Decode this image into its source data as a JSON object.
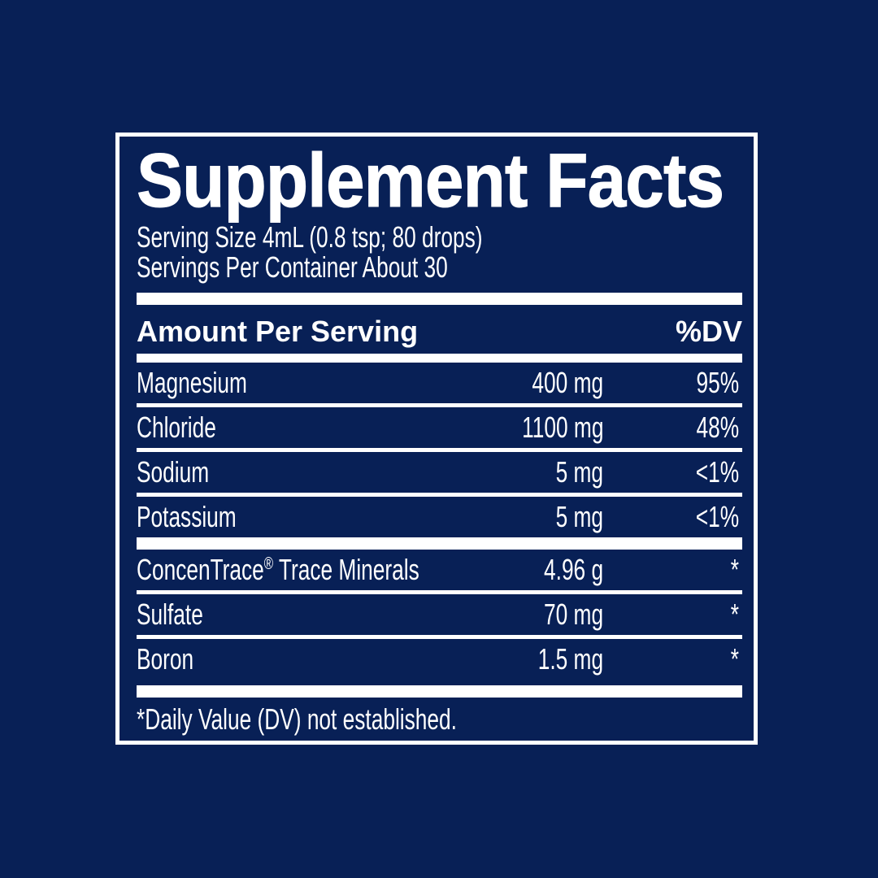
{
  "page": {
    "colors": {
      "background": "#082056",
      "foreground": "#ffffff"
    }
  },
  "label": {
    "title": "Supplement Facts",
    "serving_size": "Serving Size 4mL (0.8 tsp; 80 drops)",
    "servings_per_container": "Servings Per Container About 30",
    "columns": {
      "amount_header": "Amount Per Serving",
      "dv_header": "%DV"
    },
    "rows": [
      {
        "name": "Magnesium",
        "amount": "400 mg",
        "dv": "95%"
      },
      {
        "name": "Chloride",
        "amount": "1100 mg",
        "dv": "48%"
      },
      {
        "name": "Sodium",
        "amount": "5 mg",
        "dv": "<1%"
      },
      {
        "name": "Potassium",
        "amount": "5 mg",
        "dv": "<1%"
      },
      {
        "name": "ConcenTrace",
        "name_sup": "®",
        "name_rest": " Trace Minerals",
        "amount": "4.96 g",
        "dv": "*"
      },
      {
        "name": "Sulfate",
        "amount": "70 mg",
        "dv": "*"
      },
      {
        "name": "Boron",
        "amount": "1.5 mg",
        "dv": "*"
      }
    ],
    "footnote": "*Daily Value (DV) not established."
  }
}
